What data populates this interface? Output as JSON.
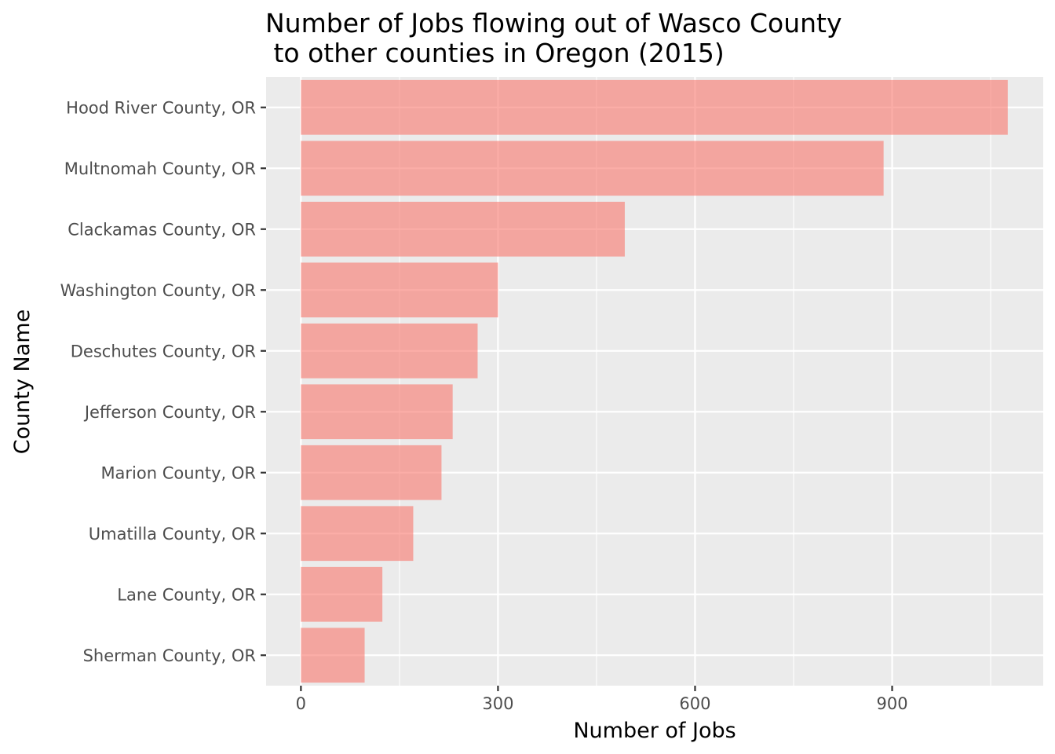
{
  "chart_data": {
    "type": "bar",
    "orientation": "horizontal",
    "title_lines": [
      "Number of Jobs flowing out of Wasco County",
      " to other counties in Oregon (2015)"
    ],
    "xlabel": "Number of Jobs",
    "ylabel": "County Name",
    "categories": [
      "Hood River County, OR",
      "Multnomah County, OR",
      "Clackamas County, OR",
      "Washington County, OR",
      "Deschutes County, OR",
      "Jefferson County, OR",
      "Marion County, OR",
      "Umatilla County, OR",
      "Lane County, OR",
      "Sherman County, OR"
    ],
    "values": [
      1076,
      887,
      493,
      300,
      269,
      231,
      214,
      171,
      124,
      97
    ],
    "xlim": [
      -53,
      1130
    ],
    "xticks": [
      0,
      300,
      600,
      900
    ],
    "xtick_labels": [
      "0",
      "300",
      "600",
      "900"
    ],
    "grid": true,
    "bar_color": "#F8766D",
    "bar_opacity": 0.6,
    "panel_color": "#EBEBEB",
    "grid_color": "#FFFFFF"
  }
}
